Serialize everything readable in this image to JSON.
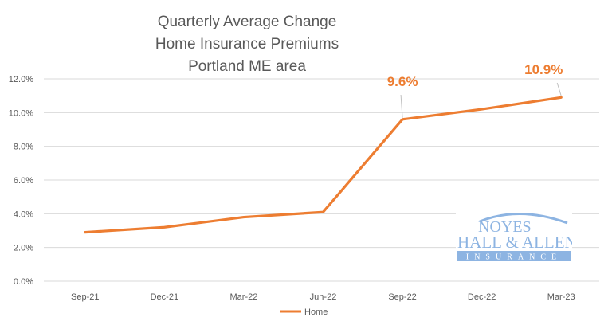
{
  "chart_data": {
    "type": "line",
    "title": [
      "Quarterly Average Change",
      "Home Insurance Premiums",
      "Portland ME area"
    ],
    "categories": [
      "Sep-21",
      "Dec-21",
      "Mar-22",
      "Jun-22",
      "Sep-22",
      "Dec-22",
      "Mar-23"
    ],
    "series": [
      {
        "name": "Home",
        "color": "#ED7D31",
        "values": [
          2.9,
          3.2,
          3.8,
          4.1,
          9.6,
          10.2,
          10.9
        ]
      }
    ],
    "data_labels": [
      {
        "category": "Sep-22",
        "text": "9.6%"
      },
      {
        "category": "Mar-23",
        "text": "10.9%"
      }
    ],
    "y_ticks": [
      "0.0%",
      "2.0%",
      "4.0%",
      "6.0%",
      "8.0%",
      "10.0%",
      "12.0%"
    ],
    "ylim": [
      0,
      12
    ],
    "y_unit": "%",
    "grid": true,
    "legend": "bottom",
    "xlabel": "",
    "ylabel": ""
  },
  "logo": {
    "line1": "NOYES",
    "line2": "HALL & ALLEN",
    "line3": "INSURANCE",
    "color": "#8DB4E2"
  }
}
